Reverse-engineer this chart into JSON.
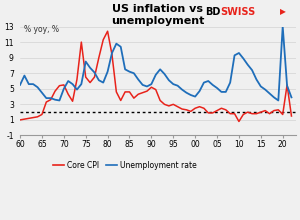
{
  "title": "US inflation vs\nunemployment",
  "ylabel": "% yoy, %",
  "xlim": [
    1960,
    2023
  ],
  "ylim": [
    -1,
    13
  ],
  "yticks": [
    -1,
    1,
    3,
    5,
    7,
    9,
    11,
    13
  ],
  "xticks": [
    1960,
    1965,
    1970,
    1975,
    1980,
    1985,
    1990,
    1995,
    2000,
    2005,
    2010,
    2015,
    2020
  ],
  "xticklabels": [
    "60",
    "65",
    "70",
    "75",
    "80",
    "85",
    "90",
    "95",
    "00",
    "05",
    "10",
    "15",
    "20"
  ],
  "dotted_line_y": 2.0,
  "core_cpi_color": "#e8231b",
  "unemployment_color": "#1f6eba",
  "background_color": "#f0f0f0",
  "core_cpi_x": [
    1960,
    1961,
    1962,
    1963,
    1964,
    1965,
    1966,
    1967,
    1968,
    1969,
    1970,
    1971,
    1972,
    1973,
    1974,
    1975,
    1976,
    1977,
    1978,
    1979,
    1980,
    1981,
    1982,
    1983,
    1984,
    1985,
    1986,
    1987,
    1988,
    1989,
    1990,
    1991,
    1992,
    1993,
    1994,
    1995,
    1996,
    1997,
    1998,
    1999,
    2000,
    2001,
    2002,
    2003,
    2004,
    2005,
    2006,
    2007,
    2008,
    2009,
    2010,
    2011,
    2012,
    2013,
    2014,
    2015,
    2016,
    2017,
    2018,
    2019,
    2020,
    2021,
    2022
  ],
  "core_cpi_y": [
    1.0,
    1.1,
    1.2,
    1.3,
    1.4,
    1.7,
    3.3,
    3.6,
    4.7,
    5.4,
    5.5,
    4.3,
    3.4,
    6.2,
    11.0,
    6.5,
    5.8,
    6.5,
    9.0,
    11.3,
    12.4,
    9.4,
    4.6,
    3.5,
    4.6,
    4.6,
    3.8,
    4.3,
    4.5,
    4.7,
    5.2,
    4.9,
    3.5,
    3.0,
    2.8,
    3.0,
    2.7,
    2.4,
    2.3,
    2.1,
    2.5,
    2.7,
    2.5,
    1.9,
    1.9,
    2.2,
    2.5,
    2.3,
    1.8,
    1.8,
    0.8,
    1.7,
    2.0,
    1.8,
    1.8,
    2.0,
    2.2,
    1.8,
    2.2,
    2.3,
    1.7,
    5.5,
    1.5
  ],
  "unemp_x": [
    1960,
    1961,
    1962,
    1963,
    1964,
    1965,
    1966,
    1967,
    1968,
    1969,
    1970,
    1971,
    1972,
    1973,
    1974,
    1975,
    1976,
    1977,
    1978,
    1979,
    1980,
    1981,
    1982,
    1983,
    1984,
    1985,
    1986,
    1987,
    1988,
    1989,
    1990,
    1991,
    1992,
    1993,
    1994,
    1995,
    1996,
    1997,
    1998,
    1999,
    2000,
    2001,
    2002,
    2003,
    2004,
    2005,
    2006,
    2007,
    2008,
    2009,
    2010,
    2011,
    2012,
    2013,
    2014,
    2015,
    2016,
    2017,
    2018,
    2019,
    2020,
    2021,
    2022
  ],
  "unemp_y": [
    5.5,
    6.7,
    5.6,
    5.6,
    5.2,
    4.5,
    3.8,
    3.8,
    3.6,
    3.5,
    5.0,
    6.0,
    5.6,
    4.9,
    5.6,
    8.5,
    7.7,
    7.1,
    6.1,
    5.8,
    7.2,
    9.6,
    10.8,
    10.4,
    7.5,
    7.2,
    7.0,
    6.2,
    5.5,
    5.3,
    5.6,
    6.8,
    7.5,
    6.9,
    6.1,
    5.6,
    5.4,
    4.9,
    4.5,
    4.2,
    4.0,
    4.7,
    5.8,
    6.0,
    5.5,
    5.1,
    4.6,
    4.6,
    5.8,
    9.3,
    9.6,
    8.9,
    8.1,
    7.4,
    6.2,
    5.3,
    4.9,
    4.4,
    3.9,
    3.5,
    13.0,
    5.4,
    3.9
  ]
}
